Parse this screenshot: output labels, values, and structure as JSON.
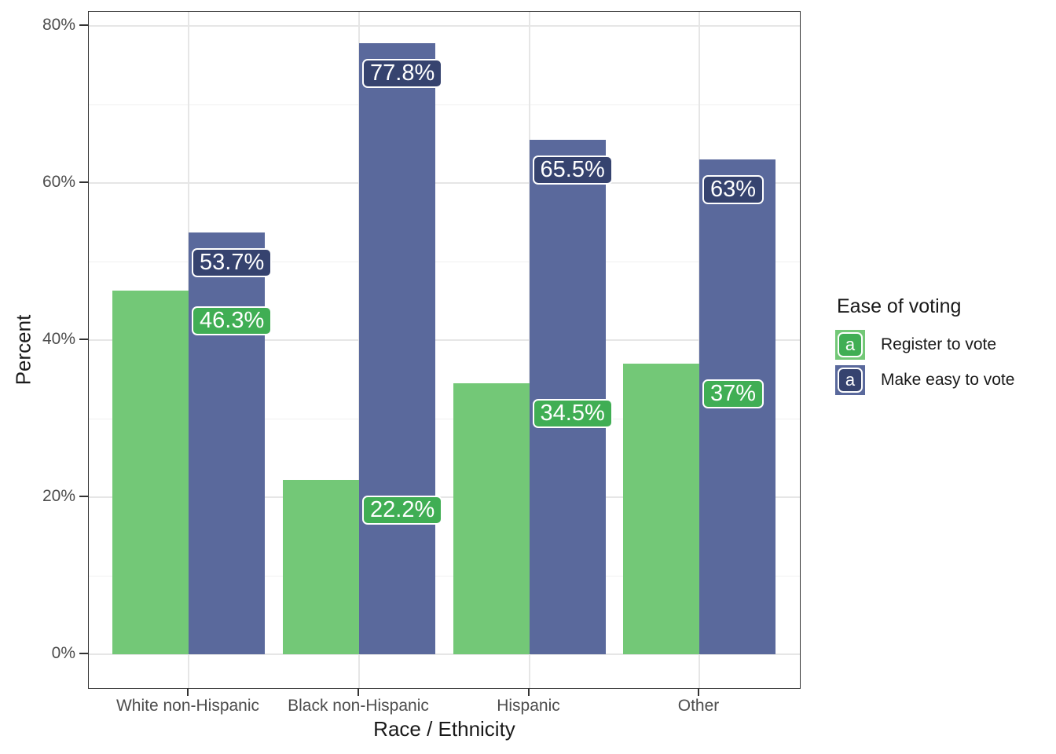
{
  "chart_data": {
    "type": "bar",
    "categories": [
      "White non-Hispanic",
      "Black non-Hispanic",
      "Hispanic",
      "Other"
    ],
    "series": [
      {
        "name": "Register to vote",
        "values": [
          46.3,
          22.2,
          34.5,
          37
        ],
        "value_labels": [
          "46.3%",
          "22.2%",
          "34.5%",
          "37%"
        ],
        "bar_color": "#73C877",
        "label_fill": "#40AE54"
      },
      {
        "name": "Make easy to vote",
        "values": [
          53.7,
          77.8,
          65.5,
          63
        ],
        "value_labels": [
          "53.7%",
          "77.8%",
          "65.5%",
          "63%"
        ],
        "bar_color": "#5A699C",
        "label_fill": "#36436F"
      }
    ],
    "xlabel": "Race / Ethnicity",
    "ylabel": "Percent",
    "ylim": [
      0,
      80
    ],
    "y_major_ticks": [
      {
        "value": 0,
        "label": "0%"
      },
      {
        "value": 20,
        "label": "20%"
      },
      {
        "value": 40,
        "label": "40%"
      },
      {
        "value": 60,
        "label": "60%"
      },
      {
        "value": 80,
        "label": "80%"
      }
    ],
    "y_minor_ticks": [
      10,
      30,
      50,
      70
    ],
    "grid": "horizontal major+minor, vertical major at categories",
    "legend": {
      "title": "Ease of voting",
      "position": "right",
      "glyph_char": "a"
    }
  },
  "colors": {
    "background": "#FFFFFF",
    "panel_border": "#333333",
    "grid_major": "#E6E6E6",
    "grid_minor": "#F0F0F0",
    "axis_text": "#4D4D4D",
    "title_text": "#1A1A1A",
    "value_label_text": "#FFFFFF"
  }
}
